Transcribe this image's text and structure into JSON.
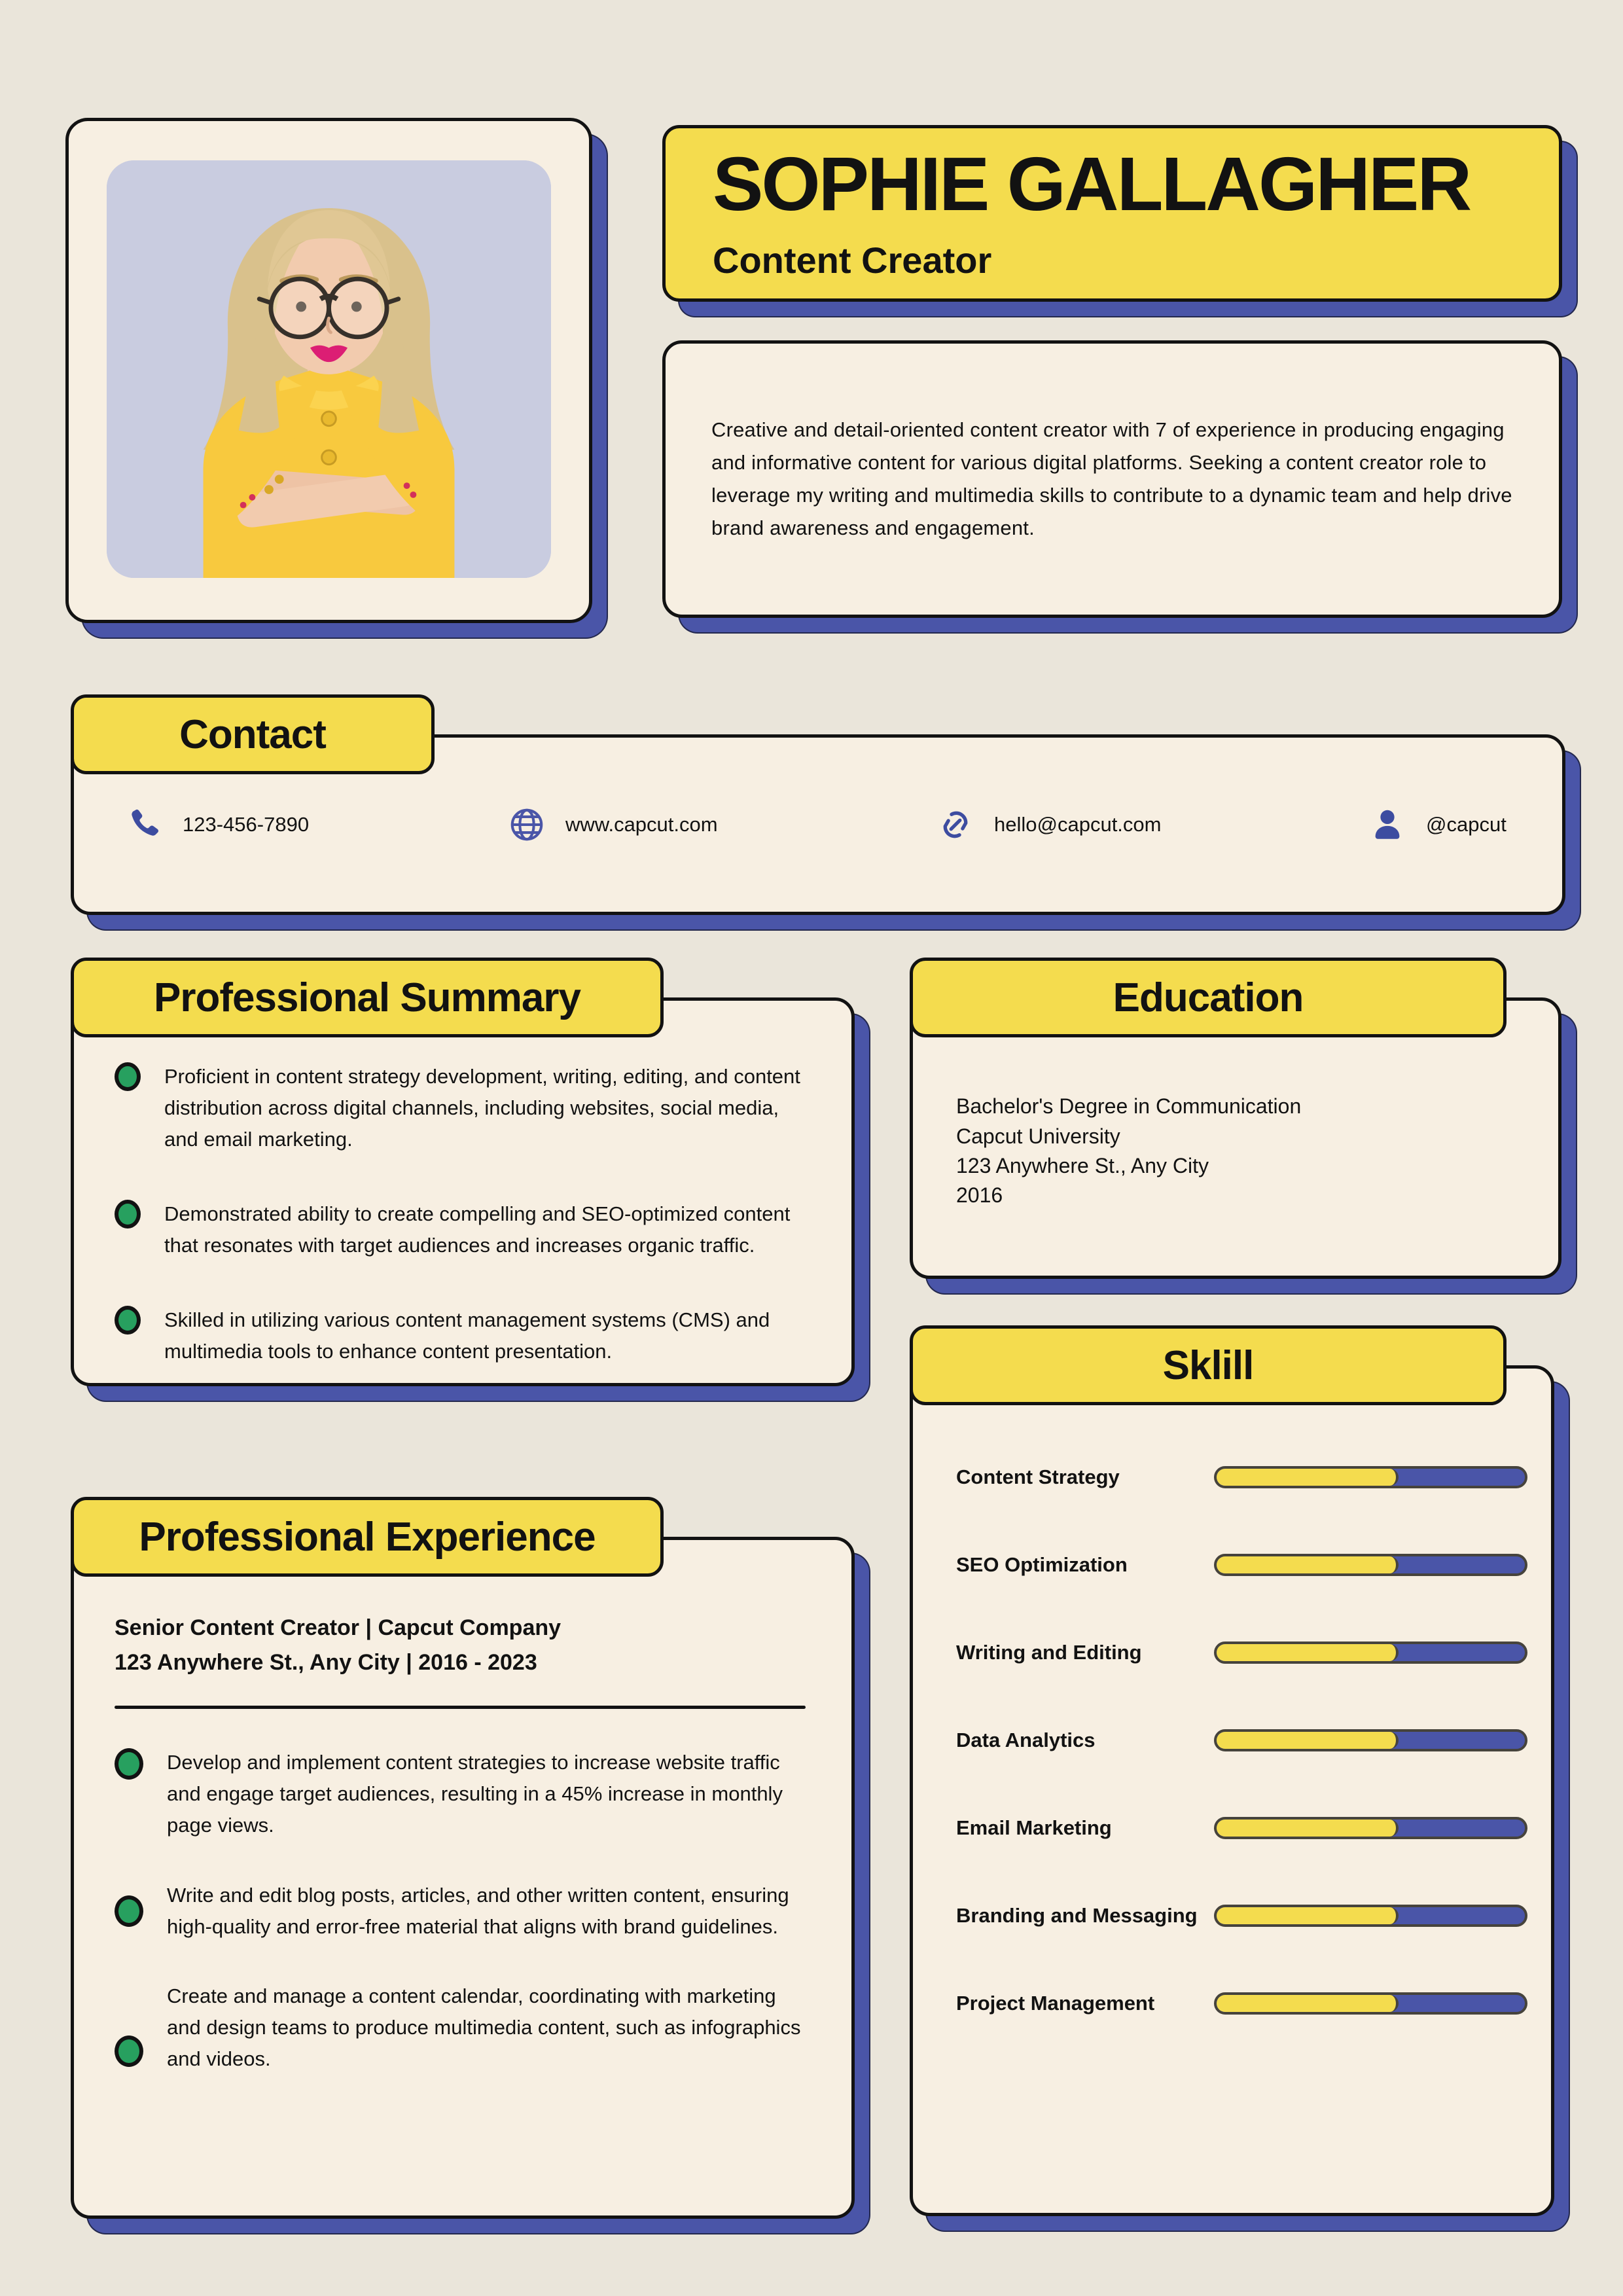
{
  "colors": {
    "page_background": "#EAE5DA",
    "card_background": "#F7EFE2",
    "accent_yellow": "#F4DC4E",
    "accent_blue": "#4A55A8",
    "bullet_green": "#27A05F",
    "border_black": "#121212",
    "photo_background": "#C9CCE0"
  },
  "header": {
    "name": "SOPHIE GALLAGHER",
    "title": "Content Creator"
  },
  "photo": {
    "description": "Portrait of a blonde woman with round glasses wearing a yellow blazer, arms crossed"
  },
  "about": {
    "text": "Creative and detail-oriented content creator with 7 of experience in producing engaging and informative content for various digital platforms. Seeking a content creator role to leverage my writing and multimedia skills to contribute to a dynamic team and help drive brand awareness and engagement."
  },
  "contact": {
    "title": "Contact",
    "items": [
      {
        "icon": "phone-icon",
        "label": "123-456-7890"
      },
      {
        "icon": "globe-icon",
        "label": "www.capcut.com"
      },
      {
        "icon": "link-icon",
        "label": "hello@capcut.com"
      },
      {
        "icon": "user-icon",
        "label": "@capcut"
      }
    ]
  },
  "summary": {
    "title": "Professional Summary",
    "bullets": [
      "Proficient in content strategy development, writing, editing, and content distribution across digital channels, including websites, social media, and email marketing.",
      "Demonstrated ability to create compelling and SEO-optimized content that resonates with target audiences and increases organic traffic.",
      "Skilled in utilizing various content management systems (CMS) and multimedia tools to enhance content presentation."
    ]
  },
  "education": {
    "title": "Education",
    "lines": [
      "Bachelor's Degree in Communication",
      "Capcut University",
      "123 Anywhere St., Any City",
      "2016"
    ]
  },
  "skills": {
    "title": "Sklill",
    "items": [
      {
        "label": "Content Strategy",
        "percent": 59
      },
      {
        "label": "SEO Optimization",
        "percent": 59
      },
      {
        "label": "Writing and Editing",
        "percent": 59
      },
      {
        "label": "Data Analytics",
        "percent": 59
      },
      {
        "label": "Email Marketing",
        "percent": 59
      },
      {
        "label": "Branding and Messaging",
        "percent": 59
      },
      {
        "label": "Project Management",
        "percent": 59
      }
    ]
  },
  "experience": {
    "title": "Professional Experience",
    "role_line": "Senior Content Creator | Capcut Company",
    "meta_line": "123 Anywhere St., Any City | 2016 - 2023",
    "bullets": [
      "Develop and implement content strategies to increase website traffic and engage target audiences, resulting in a 45% increase in monthly page views.",
      "Write and edit blog posts, articles, and other written content, ensuring high-quality and error-free material that aligns with brand guidelines.",
      "Create and manage a content calendar, coordinating with marketing and design teams to produce multimedia content, such as infographics and videos."
    ]
  }
}
